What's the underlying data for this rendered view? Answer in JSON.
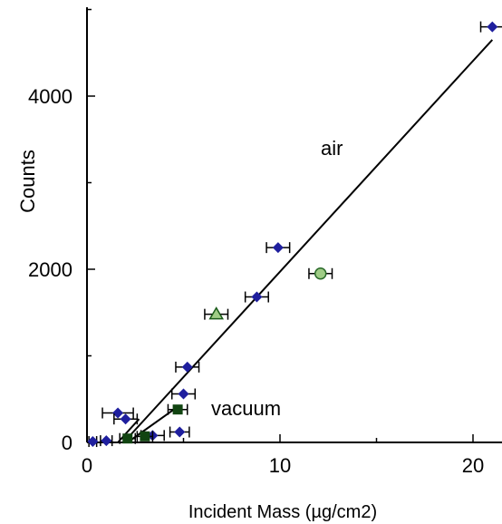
{
  "chart_data": {
    "type": "scatter",
    "xlabel": "Incident Mass (µg/cm2)",
    "ylabel": "Counts",
    "xlim": [
      0,
      21.5
    ],
    "ylim": [
      0,
      5000
    ],
    "x_ticks": [
      0,
      10,
      20
    ],
    "x_tick_labels": [
      "0",
      "10",
      "20"
    ],
    "y_ticks": [
      0,
      2000,
      4000
    ],
    "y_tick_labels": [
      "0",
      "2000",
      "4000"
    ],
    "grid": false,
    "annotations": [
      {
        "text": "air",
        "x": 12.7,
        "y": 3350
      },
      {
        "text": "vacuum",
        "x": 8.4,
        "y": 350
      }
    ],
    "series": [
      {
        "marker": "diamond",
        "color": "#1f1f9e",
        "points": [
          {
            "x": 21.0,
            "y": 4800,
            "xerr": 0.6
          },
          {
            "x": 9.9,
            "y": 2250,
            "xerr": 0.6
          },
          {
            "x": 8.8,
            "y": 1680,
            "xerr": 0.6
          },
          {
            "x": 5.2,
            "y": 870,
            "xerr": 0.6
          },
          {
            "x": 5.0,
            "y": 560,
            "xerr": 0.6
          },
          {
            "x": 1.6,
            "y": 340,
            "xerr": 0.8
          },
          {
            "x": 2.0,
            "y": 270,
            "xerr": 0.6
          },
          {
            "x": 4.8,
            "y": 120,
            "xerr": 0.5
          },
          {
            "x": 3.4,
            "y": 80,
            "xerr": 0.6
          },
          {
            "x": 1.0,
            "y": 20,
            "xerr": 0.3
          },
          {
            "x": 0.3,
            "y": 10,
            "xerr": 0.2
          }
        ]
      },
      {
        "marker": "circle",
        "color": "#9fcc86",
        "points": [
          {
            "x": 12.1,
            "y": 1950,
            "xerr": 0.6
          }
        ]
      },
      {
        "marker": "triangle",
        "color": "#9fcc86",
        "points": [
          {
            "x": 6.7,
            "y": 1480,
            "xerr": 0.6
          }
        ]
      },
      {
        "marker": "square",
        "color": "#114411",
        "points": [
          {
            "x": 4.7,
            "y": 380,
            "xerr": 0.5
          },
          {
            "x": 3.0,
            "y": 70,
            "xerr": 0.4
          },
          {
            "x": 2.1,
            "y": 45,
            "xerr": 0.4
          }
        ]
      }
    ],
    "fit_lines": [
      {
        "name": "air",
        "from": [
          1.9,
          0
        ],
        "to": [
          21.0,
          4650
        ]
      },
      {
        "name": "vacuum",
        "from": [
          1.6,
          0
        ],
        "to": [
          2.7,
          270
        ]
      },
      {
        "name": "vacuum2",
        "from": [
          2.1,
          0
        ],
        "to": [
          4.5,
          380
        ]
      }
    ]
  }
}
